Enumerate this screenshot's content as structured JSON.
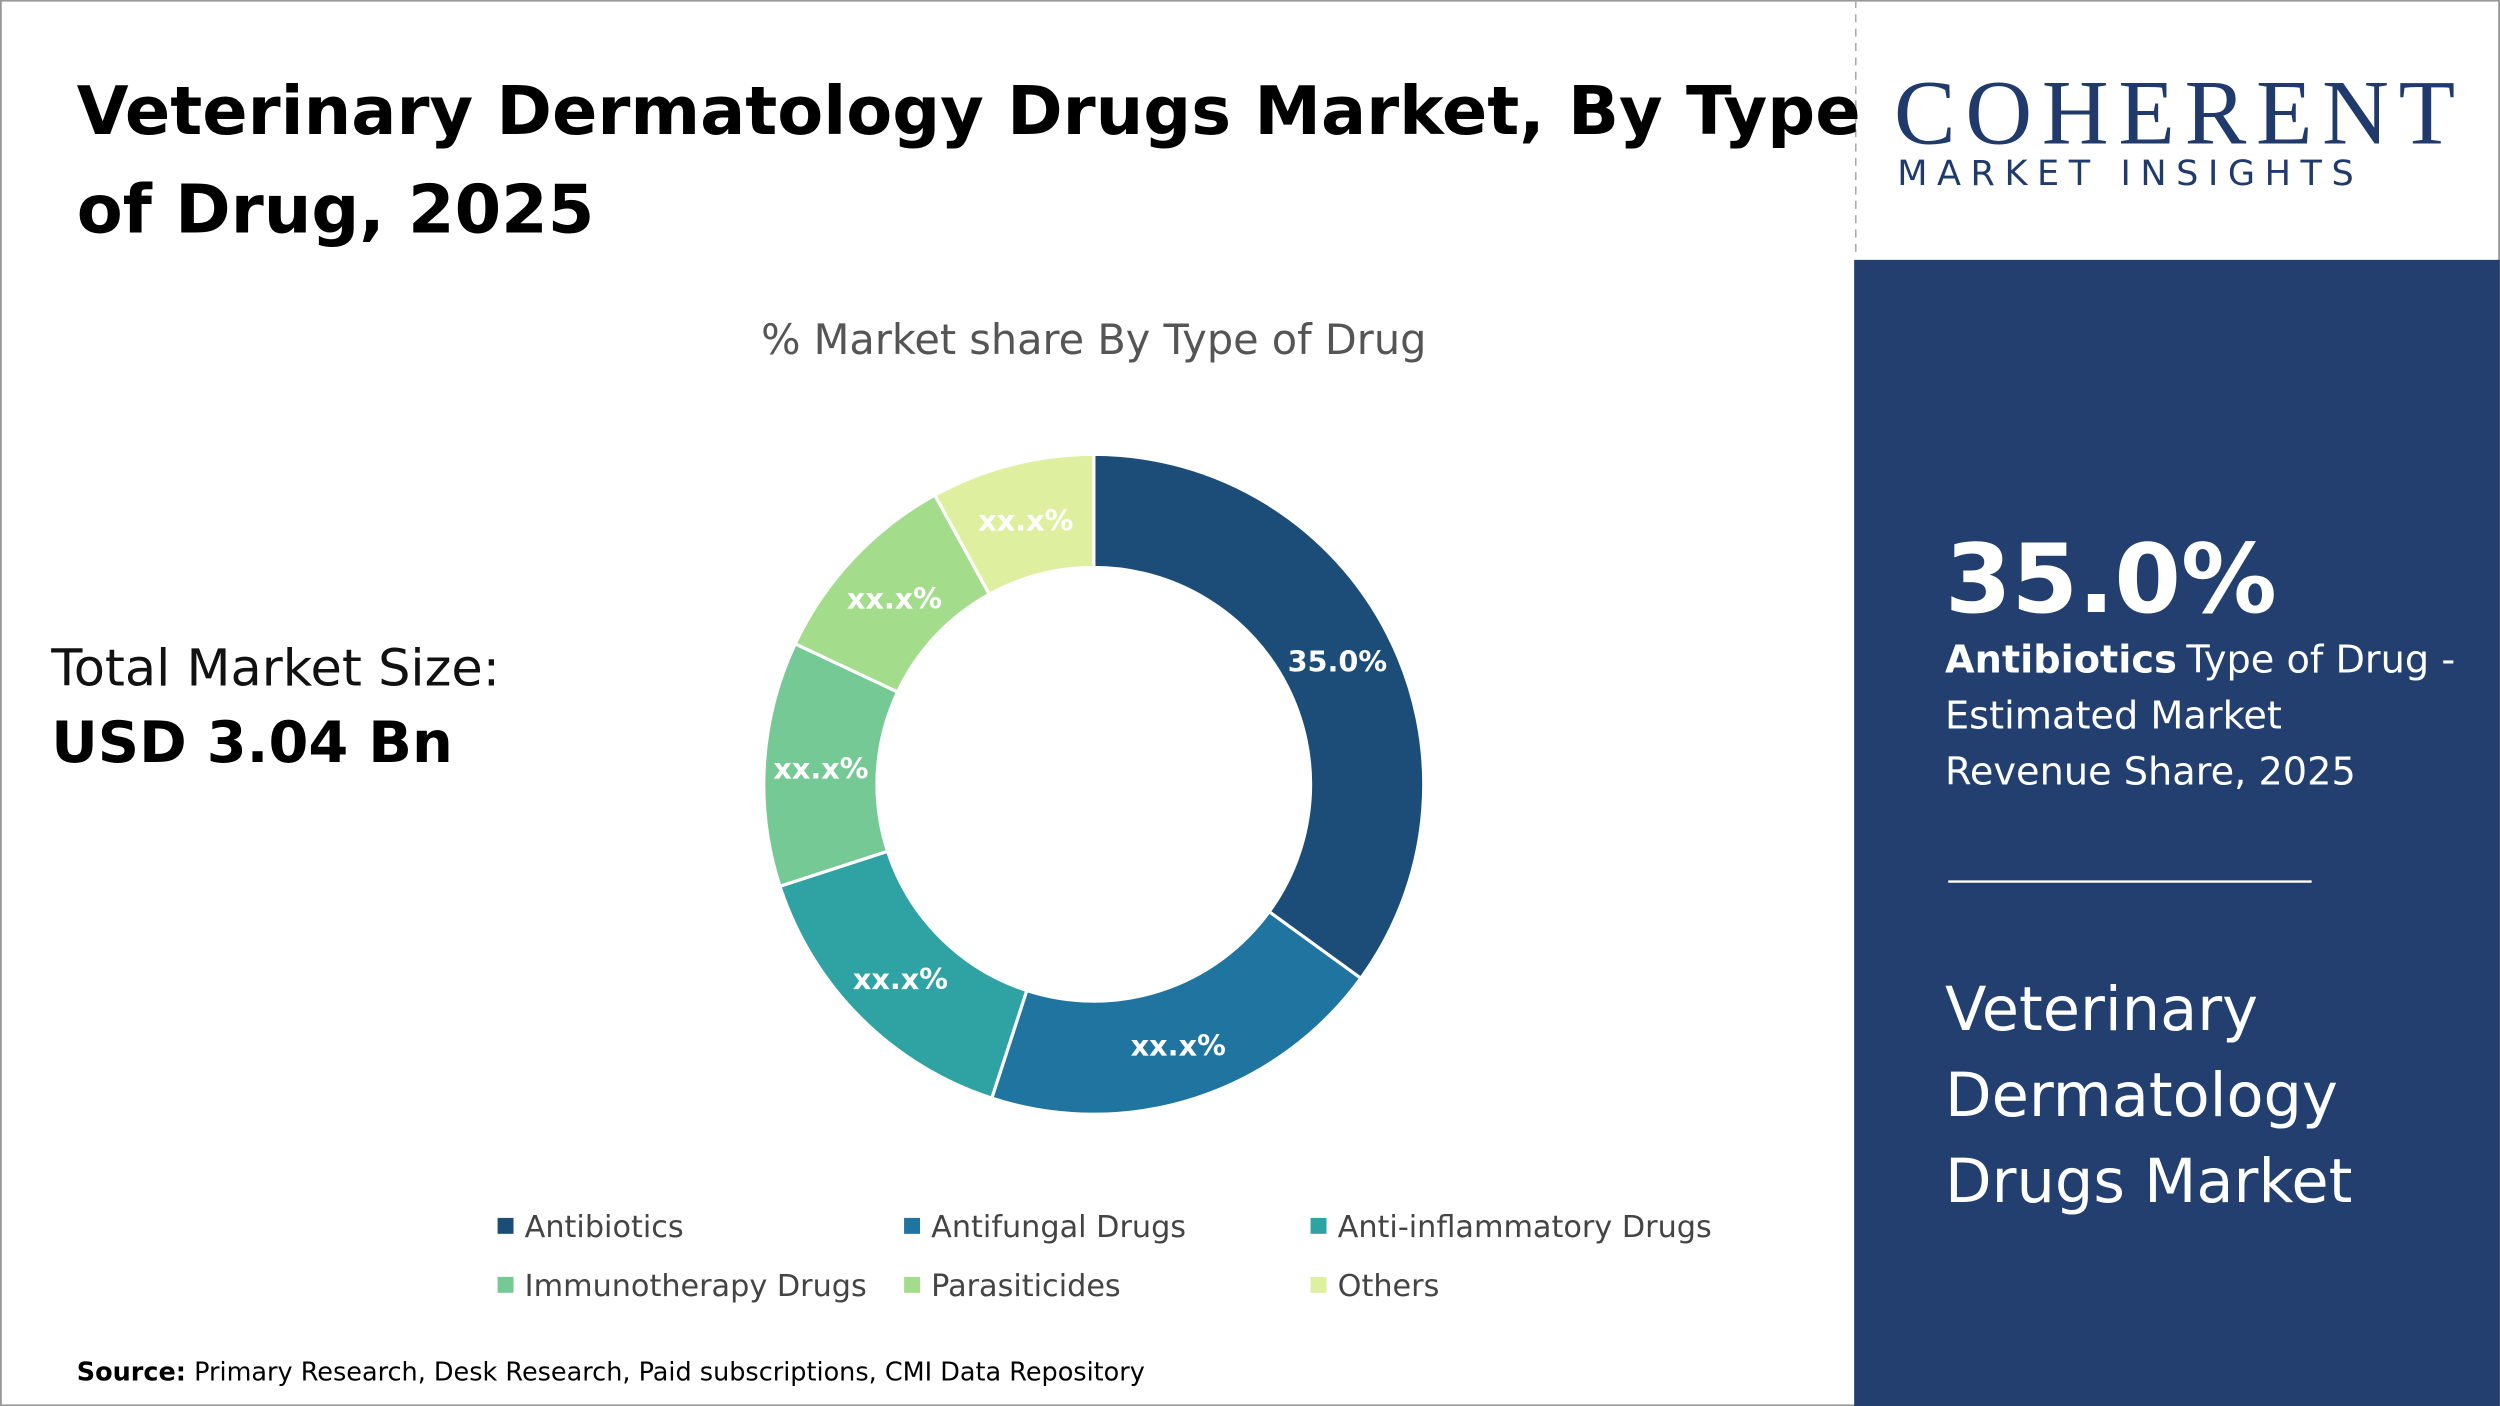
{
  "header": {
    "title_lines": [
      "Veterinary Dermatology Drugs Market, By Type",
      "of Drug, 2025"
    ]
  },
  "market_size": {
    "label": "Total Market Size:",
    "value": "USD 3.04 Bn"
  },
  "chart_data": {
    "type": "donut",
    "title": "% Market share By Type of Drug",
    "categories": [
      "Antibiotics",
      "Antifungal Drugs",
      "Anti-inflammatory Drugs",
      "Immunotherapy Drugs",
      "Parasiticides",
      "Others"
    ],
    "values": [
      35,
      20,
      15,
      12,
      10,
      8
    ],
    "value_labels": [
      "35.0%",
      "xx.x%",
      "xx.x%",
      "xx.x%",
      "xx.x%",
      "xx.x%"
    ],
    "colors": [
      "#1b4d78",
      "#1f74a0",
      "#2fa3a3",
      "#74c994",
      "#a3dd8c",
      "#def0a0"
    ]
  },
  "logo": {
    "name": "COHERENT",
    "tagline": "MARKET INSIGHTS"
  },
  "panel": {
    "highlight_lines": [
      "Type of Drug -",
      "Estimated Market",
      "Revenue Share, 2025"
    ],
    "market_lines": [
      "Veterinary",
      "Dermatology",
      "Drugs Market"
    ]
  },
  "source": {
    "label": "Source:",
    "text": "Primary Research, Desk Research, Paid subscriptions, CMI Data Repository"
  }
}
